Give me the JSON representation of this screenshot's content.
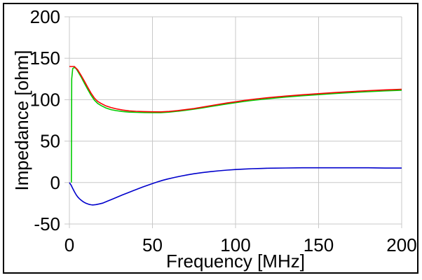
{
  "figure": {
    "x_title": "Frequency [MHz]",
    "y_title": "Impedance [ohm]"
  },
  "chart_data": {
    "type": "line",
    "title": "",
    "xlabel": "Frequency [MHz]",
    "ylabel": "Impedance [ohm]",
    "xlim": [
      0,
      200
    ],
    "ylim": [
      -50,
      200
    ],
    "x_ticks": [
      0,
      50,
      100,
      150,
      200
    ],
    "y_ticks": [
      200,
      150,
      100,
      50,
      0,
      -50
    ],
    "grid": true,
    "legend_position": "none",
    "colors": {
      "grid": "#c8c8c8",
      "frame": "#000000",
      "background": "#ffffff",
      "text": "#000000"
    },
    "series": [
      {
        "name": "impedance-green",
        "color": "#00cc00",
        "points": [
          [
            1.2,
            0
          ],
          [
            1.4,
            125
          ],
          [
            2,
            137.5
          ],
          [
            3,
            139
          ],
          [
            4,
            137.5
          ],
          [
            5,
            134.5
          ],
          [
            7,
            127.5
          ],
          [
            9,
            120
          ],
          [
            11,
            112.5
          ],
          [
            13,
            105.5
          ],
          [
            15,
            99.5
          ],
          [
            17,
            95.5
          ],
          [
            19,
            93
          ],
          [
            22,
            90
          ],
          [
            25,
            88
          ],
          [
            28,
            86.8
          ],
          [
            32,
            85.7
          ],
          [
            36,
            85
          ],
          [
            40,
            84.7
          ],
          [
            45,
            84.5
          ],
          [
            50,
            84.4
          ],
          [
            55,
            84.4
          ],
          [
            60,
            85
          ],
          [
            65,
            86
          ],
          [
            70,
            87.2
          ],
          [
            75,
            88.5
          ],
          [
            80,
            90
          ],
          [
            85,
            91.7
          ],
          [
            90,
            93.3
          ],
          [
            95,
            94.9
          ],
          [
            100,
            96.4
          ],
          [
            105,
            97.8
          ],
          [
            110,
            99.1
          ],
          [
            120,
            101.3
          ],
          [
            130,
            103.1
          ],
          [
            140,
            104.7
          ],
          [
            150,
            106.1
          ],
          [
            160,
            107.4
          ],
          [
            170,
            108.6
          ],
          [
            180,
            109.7
          ],
          [
            190,
            110.6
          ],
          [
            200,
            111.4
          ]
        ]
      },
      {
        "name": "impedance-blue",
        "color": "#0000cc",
        "points": [
          [
            0,
            0
          ],
          [
            1,
            -3
          ],
          [
            2,
            -7
          ],
          [
            3,
            -11
          ],
          [
            4,
            -14.5
          ],
          [
            5,
            -17.2
          ],
          [
            6,
            -19.4
          ],
          [
            7,
            -21.2
          ],
          [
            8,
            -22.7
          ],
          [
            9,
            -24
          ],
          [
            10,
            -25
          ],
          [
            11,
            -25.8
          ],
          [
            12,
            -26.4
          ],
          [
            13,
            -26.8
          ],
          [
            14,
            -27
          ],
          [
            15,
            -26.9
          ],
          [
            16,
            -26.6
          ],
          [
            18,
            -25.8
          ],
          [
            20,
            -24.8
          ],
          [
            23,
            -22.4
          ],
          [
            26,
            -19.9
          ],
          [
            29,
            -17.4
          ],
          [
            32,
            -14.9
          ],
          [
            35,
            -12.5
          ],
          [
            38,
            -10.1
          ],
          [
            41,
            -7.8
          ],
          [
            44,
            -5.5
          ],
          [
            47,
            -3.3
          ],
          [
            50,
            -1.2
          ],
          [
            53,
            0.8
          ],
          [
            56,
            2.6
          ],
          [
            59,
            4.2
          ],
          [
            63,
            6.1
          ],
          [
            67,
            7.8
          ],
          [
            71,
            9.3
          ],
          [
            75,
            10.6
          ],
          [
            80,
            12
          ],
          [
            85,
            13.2
          ],
          [
            90,
            14.2
          ],
          [
            95,
            15
          ],
          [
            100,
            15.7
          ],
          [
            105,
            16.2
          ],
          [
            110,
            16.7
          ],
          [
            115,
            17
          ],
          [
            120,
            17.3
          ],
          [
            130,
            17.6
          ],
          [
            140,
            17.8
          ],
          [
            150,
            17.8
          ],
          [
            160,
            17.8
          ],
          [
            170,
            17.8
          ],
          [
            180,
            17.8
          ],
          [
            190,
            17.5
          ],
          [
            200,
            17.5
          ]
        ]
      },
      {
        "name": "impedance-red",
        "color": "#ff0000",
        "points": [
          [
            0,
            140
          ],
          [
            3,
            140
          ],
          [
            5,
            136
          ],
          [
            7,
            129.5
          ],
          [
            9,
            122.5
          ],
          [
            11,
            115
          ],
          [
            13,
            108
          ],
          [
            15,
            102
          ],
          [
            17,
            98
          ],
          [
            19,
            95.5
          ],
          [
            22,
            92.5
          ],
          [
            25,
            90.5
          ],
          [
            28,
            89
          ],
          [
            32,
            87.5
          ],
          [
            36,
            86.5
          ],
          [
            40,
            86
          ],
          [
            45,
            85.6
          ],
          [
            50,
            85.4
          ],
          [
            55,
            85.3
          ],
          [
            60,
            85.8
          ],
          [
            65,
            86.8
          ],
          [
            70,
            88
          ],
          [
            75,
            89.4
          ],
          [
            80,
            91
          ],
          [
            85,
            92.7
          ],
          [
            90,
            94.4
          ],
          [
            95,
            96
          ],
          [
            100,
            97.5
          ],
          [
            105,
            99
          ],
          [
            110,
            100.3
          ],
          [
            120,
            102.5
          ],
          [
            130,
            104.3
          ],
          [
            140,
            105.9
          ],
          [
            150,
            107.3
          ],
          [
            160,
            108.6
          ],
          [
            170,
            109.8
          ],
          [
            180,
            110.9
          ],
          [
            190,
            111.8
          ],
          [
            200,
            112.6
          ]
        ]
      }
    ]
  }
}
